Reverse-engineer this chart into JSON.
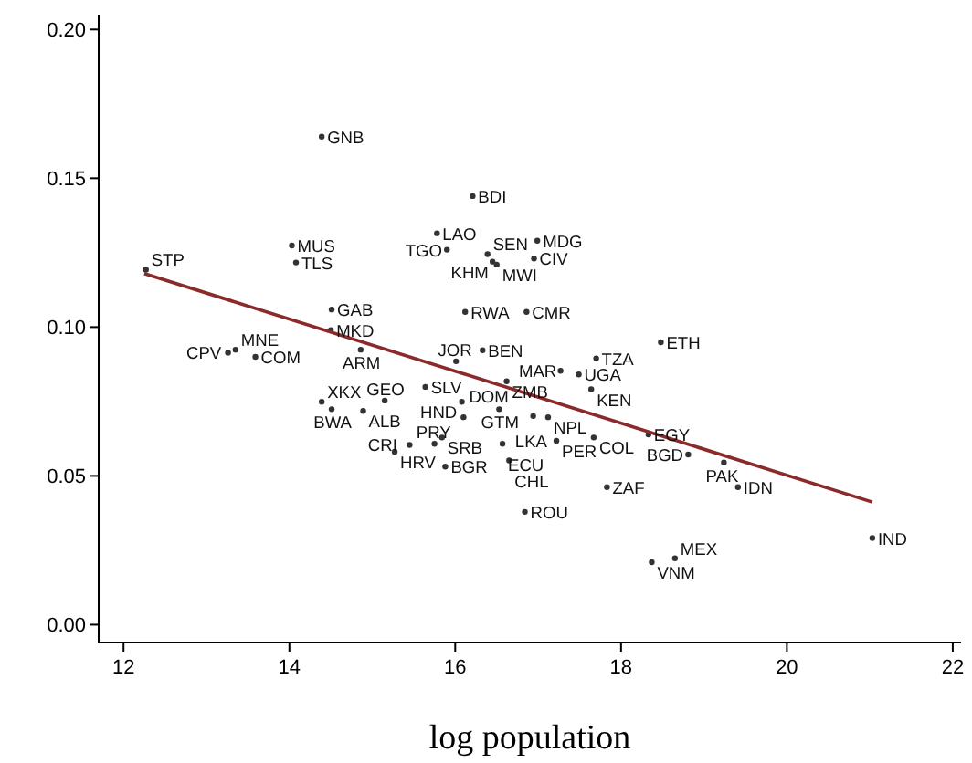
{
  "chart_data": {
    "type": "scatter",
    "xlabel": "log population",
    "xlim": [
      11.7,
      22.1
    ],
    "ylim": [
      -0.006,
      0.205
    ],
    "xticks": [
      12,
      14,
      16,
      18,
      20,
      22
    ],
    "yticks": [
      {
        "value": 0,
        "label": "0.00"
      },
      {
        "value": 0.05,
        "label": "0.05"
      },
      {
        "value": 0.1,
        "label": "0.10"
      },
      {
        "value": 0.15,
        "label": "0.15"
      },
      {
        "value": 0.2,
        "label": "0.20"
      }
    ],
    "grid": false,
    "marker": "circle",
    "series": [
      {
        "color": "#333333",
        "x": [
          14.39,
          16.21,
          15.78,
          16.99,
          15.9,
          16.39,
          16.45,
          16.5,
          16.95,
          14.03,
          14.08,
          12.27,
          14.51,
          16.12,
          16.86,
          14.5,
          14.86,
          13.26,
          13.35,
          13.59,
          16.33,
          16.01,
          18.48,
          17.7,
          17.27,
          17.49,
          17.64,
          16.62,
          15.64,
          16.08,
          16.53,
          16.94,
          17.12,
          16.1,
          14.39,
          15.15,
          14.51,
          14.89,
          15.84,
          15.27,
          15.45,
          15.75,
          15.88,
          16.57,
          16.65,
          17.22,
          17.67,
          18.33,
          18.81,
          19.24,
          17.83,
          19.41,
          16.84,
          21.03,
          18.37,
          18.65
        ],
        "values": [
          0.164,
          0.144,
          0.1315,
          0.129,
          0.126,
          0.1245,
          0.122,
          0.121,
          0.123,
          0.1274,
          0.1217,
          0.1193,
          0.1059,
          0.1051,
          0.1051,
          0.099,
          0.0924,
          0.0914,
          0.0924,
          0.09,
          0.0922,
          0.0885,
          0.0949,
          0.0895,
          0.0853,
          0.0841,
          0.0791,
          0.0818,
          0.0799,
          0.0749,
          0.0724,
          0.0701,
          0.0697,
          0.0697,
          0.0749,
          0.0753,
          0.0724,
          0.0718,
          0.0629,
          0.0581,
          0.0604,
          0.0608,
          0.0531,
          0.0608,
          0.0552,
          0.0618,
          0.0629,
          0.0639,
          0.0572,
          0.0545,
          0.0462,
          0.0462,
          0.0379,
          0.0291,
          0.021,
          0.0223
        ]
      },
      {
        "type": "line",
        "marker": "none",
        "color": "#8b2a2a",
        "x": [
          12.25,
          21.03
        ],
        "values": [
          0.118,
          0.0412
        ]
      }
    ],
    "annotations": [
      {
        "text": "GNB",
        "x": 14.39,
        "y": 0.164
      },
      {
        "text": "BDI",
        "x": 16.21,
        "y": 0.144
      },
      {
        "text": "LAO",
        "x": 15.78,
        "y": 0.1315
      },
      {
        "text": "MDG",
        "x": 16.99,
        "y": 0.129
      },
      {
        "text": "TGO",
        "x": 15.9,
        "y": 0.126
      },
      {
        "text": "SEN",
        "x": 16.39,
        "y": 0.1245
      },
      {
        "text": "KHM",
        "x": 16.45,
        "y": 0.122
      },
      {
        "text": "MWI",
        "x": 16.5,
        "y": 0.121
      },
      {
        "text": "CIV",
        "x": 16.95,
        "y": 0.123
      },
      {
        "text": "MUS",
        "x": 14.03,
        "y": 0.1274
      },
      {
        "text": "TLS",
        "x": 14.08,
        "y": 0.1217
      },
      {
        "text": "STP",
        "x": 12.27,
        "y": 0.1193
      },
      {
        "text": "GAB",
        "x": 14.51,
        "y": 0.1059
      },
      {
        "text": "RWA",
        "x": 16.12,
        "y": 0.1051
      },
      {
        "text": "CMR",
        "x": 16.86,
        "y": 0.1051
      },
      {
        "text": "MKD",
        "x": 14.5,
        "y": 0.099
      },
      {
        "text": "ARM",
        "x": 14.86,
        "y": 0.0924
      },
      {
        "text": "CPV",
        "x": 13.26,
        "y": 0.0914
      },
      {
        "text": "MNE",
        "x": 13.35,
        "y": 0.0924
      },
      {
        "text": "COM",
        "x": 13.59,
        "y": 0.09
      },
      {
        "text": "BEN",
        "x": 16.33,
        "y": 0.0922
      },
      {
        "text": "JOR",
        "x": 16.01,
        "y": 0.0885
      },
      {
        "text": "ETH",
        "x": 18.48,
        "y": 0.0949
      },
      {
        "text": "TZA",
        "x": 17.7,
        "y": 0.0895
      },
      {
        "text": "MAR",
        "x": 17.27,
        "y": 0.0853
      },
      {
        "text": "UGA",
        "x": 17.49,
        "y": 0.0841
      },
      {
        "text": "KEN",
        "x": 17.64,
        "y": 0.0791
      },
      {
        "text": "ZMB",
        "x": 16.62,
        "y": 0.0818
      },
      {
        "text": "SLV",
        "x": 15.64,
        "y": 0.0799
      },
      {
        "text": "HND",
        "x": 16.08,
        "y": 0.0749
      },
      {
        "text": "GTM",
        "x": 16.53,
        "y": 0.0724
      },
      {
        "text": "LKA",
        "x": 16.94,
        "y": 0.0701
      },
      {
        "text": "NPL",
        "x": 17.12,
        "y": 0.0697
      },
      {
        "text": "DOM",
        "x": 16.1,
        "y": 0.0697
      },
      {
        "text": "XKX",
        "x": 14.39,
        "y": 0.0749
      },
      {
        "text": "GEO",
        "x": 15.15,
        "y": 0.0753
      },
      {
        "text": "BWA",
        "x": 14.51,
        "y": 0.0724
      },
      {
        "text": "ALB",
        "x": 14.89,
        "y": 0.0718
      },
      {
        "text": "SRB",
        "x": 15.84,
        "y": 0.0629
      },
      {
        "text": "HRV",
        "x": 15.27,
        "y": 0.0581
      },
      {
        "text": "CRI",
        "x": 15.45,
        "y": 0.0604
      },
      {
        "text": "PRY",
        "x": 15.75,
        "y": 0.0608
      },
      {
        "text": "BGR",
        "x": 15.88,
        "y": 0.0531
      },
      {
        "text": "ECU",
        "x": 16.57,
        "y": 0.0608
      },
      {
        "text": "CHL",
        "x": 16.65,
        "y": 0.0552
      },
      {
        "text": "PER",
        "x": 17.22,
        "y": 0.0618
      },
      {
        "text": "COL",
        "x": 17.67,
        "y": 0.0629
      },
      {
        "text": "EGY",
        "x": 18.33,
        "y": 0.0639
      },
      {
        "text": "BGD",
        "x": 18.81,
        "y": 0.0572
      },
      {
        "text": "PAK",
        "x": 19.24,
        "y": 0.0545
      },
      {
        "text": "ZAF",
        "x": 17.83,
        "y": 0.0462
      },
      {
        "text": "IDN",
        "x": 19.41,
        "y": 0.0462
      },
      {
        "text": "ROU",
        "x": 16.84,
        "y": 0.0379
      },
      {
        "text": "IND",
        "x": 21.03,
        "y": 0.0291
      },
      {
        "text": "VNM",
        "x": 18.37,
        "y": 0.021
      },
      {
        "text": "MEX",
        "x": 18.65,
        "y": 0.0223
      }
    ]
  }
}
